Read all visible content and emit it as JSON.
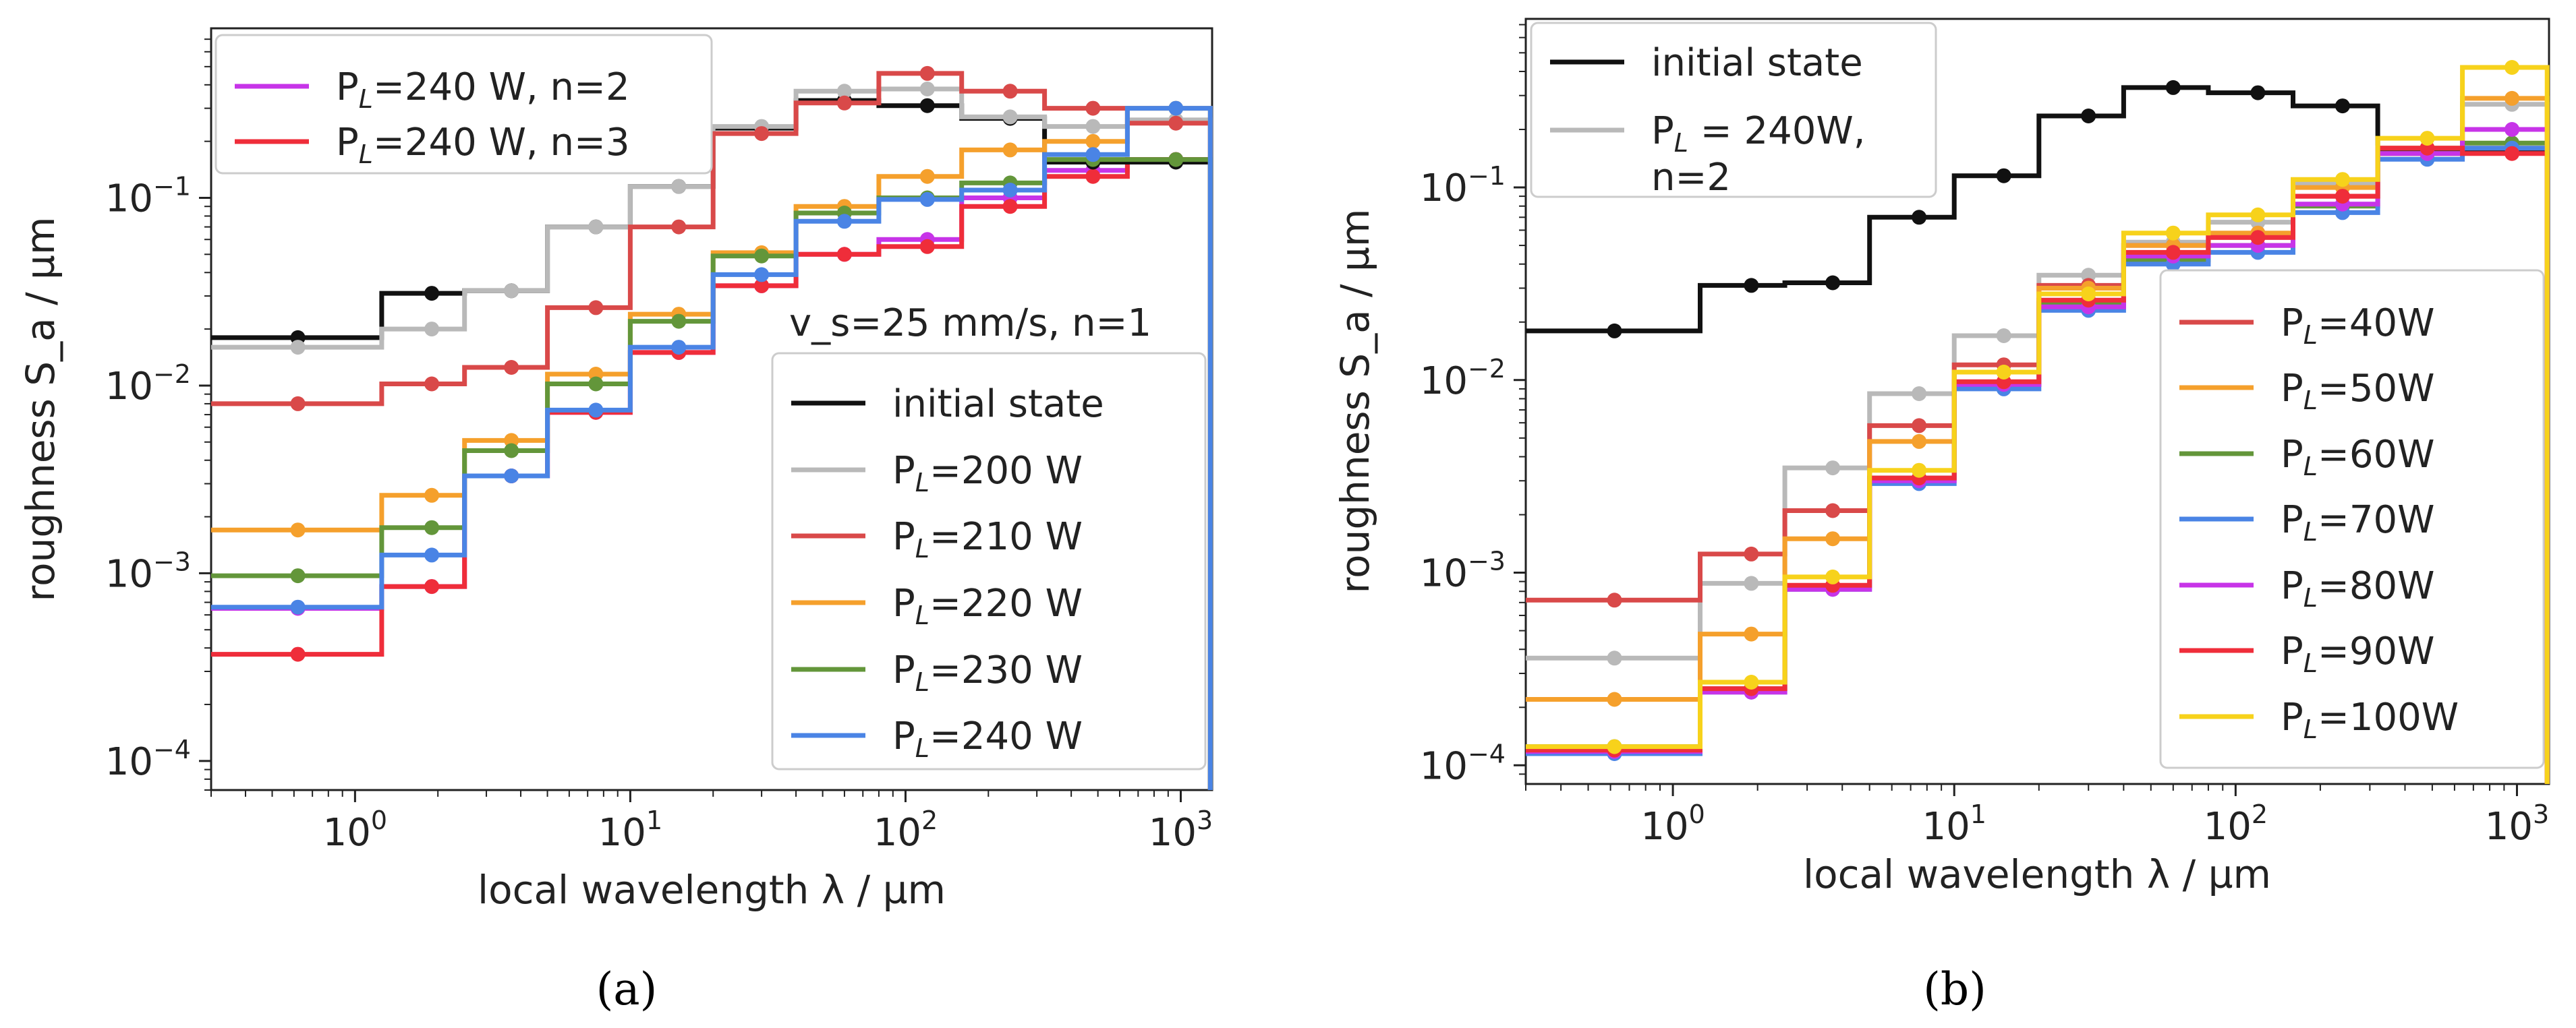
{
  "figure": {
    "captions": [
      "(a)",
      "(b)"
    ]
  },
  "chart_data": [
    {
      "type": "line",
      "panel": "a",
      "step": true,
      "xscale": "log",
      "yscale": "log",
      "xlabel": "local wavelength λ / µm",
      "ylabel": "roughness S_a / µm",
      "xlim": [
        0.3,
        1300
      ],
      "ylim": [
        7e-05,
        0.8
      ],
      "x_ticks": [
        {
          "value": 1,
          "base": "10",
          "exp": "0"
        },
        {
          "value": 10,
          "base": "10",
          "exp": "1"
        },
        {
          "value": 100,
          "base": "10",
          "exp": "2"
        },
        {
          "value": 1000,
          "base": "10",
          "exp": "3"
        }
      ],
      "y_ticks": [
        {
          "value": 0.0001,
          "base": "10",
          "exp": "−4"
        },
        {
          "value": 0.001,
          "base": "10",
          "exp": "−3"
        },
        {
          "value": 0.01,
          "base": "10",
          "exp": "−2"
        },
        {
          "value": 0.1,
          "base": "10",
          "exp": "−1"
        }
      ],
      "bin_edges": [
        0.3,
        1.25,
        2.5,
        5,
        10,
        20,
        40,
        80,
        160,
        320,
        640,
        1280
      ],
      "x": [
        0.62,
        1.9,
        3.7,
        7.5,
        15,
        30,
        60,
        120,
        240,
        480,
        960
      ],
      "annotation": "v_s=25 mm/s, n=1",
      "legends": [
        {
          "position": "upper-left",
          "items": [
            0,
            1
          ]
        },
        {
          "position": "lower-right",
          "items": [
            2,
            3,
            4,
            5,
            6,
            7
          ]
        }
      ],
      "series": [
        {
          "name": "P_L=240 W, n=2",
          "sub": "L",
          "pre": "P",
          "post": "=240 W, n=2",
          "color": "#c734e8",
          "values": [
            0.00065,
            0.00085,
            0.0033,
            0.0072,
            0.015,
            0.034,
            0.05,
            0.06,
            0.1,
            0.14,
            0.16
          ]
        },
        {
          "name": "P_L=240 W, n=3",
          "sub": "L",
          "pre": "P",
          "post": "=240 W, n=3",
          "color": "#ef2d3a",
          "values": [
            0.00037,
            0.00085,
            0.0033,
            0.0072,
            0.015,
            0.034,
            0.05,
            0.055,
            0.09,
            0.13,
            0.16
          ]
        },
        {
          "name": "initial state",
          "sub": "",
          "pre": "initial state",
          "post": "",
          "color": "#111111",
          "values": [
            0.018,
            0.031,
            0.032,
            0.07,
            0.115,
            0.235,
            0.33,
            0.31,
            0.265,
            0.155,
            0.155
          ]
        },
        {
          "name": "P_L=200 W",
          "sub": "L",
          "pre": "P",
          "post": "=200 W",
          "color": "#b9b9b9",
          "values": [
            0.016,
            0.02,
            0.032,
            0.07,
            0.115,
            0.24,
            0.37,
            0.38,
            0.27,
            0.24,
            0.26
          ]
        },
        {
          "name": "P_L=210 W",
          "sub": "L",
          "pre": "P",
          "post": "=210 W",
          "color": "#d94949",
          "values": [
            0.008,
            0.0102,
            0.0125,
            0.026,
            0.07,
            0.22,
            0.32,
            0.46,
            0.37,
            0.3,
            0.25
          ]
        },
        {
          "name": "P_L=220 W",
          "sub": "L",
          "pre": "P",
          "post": "=220 W",
          "color": "#f5a02c",
          "values": [
            0.0017,
            0.0026,
            0.0051,
            0.0115,
            0.024,
            0.051,
            0.09,
            0.13,
            0.18,
            0.2,
            0.3
          ]
        },
        {
          "name": "P_L=230 W",
          "sub": "L",
          "pre": "P",
          "post": "=230 W",
          "color": "#63963a",
          "values": [
            0.00097,
            0.00175,
            0.0045,
            0.0102,
            0.022,
            0.049,
            0.083,
            0.1,
            0.12,
            0.16,
            0.16
          ]
        },
        {
          "name": "P_L=240 W",
          "sub": "L",
          "pre": "P",
          "post": "=240 W",
          "color": "#4a84e5",
          "values": [
            0.00066,
            0.00125,
            0.0033,
            0.0074,
            0.016,
            0.039,
            0.075,
            0.098,
            0.11,
            0.17,
            0.3
          ]
        }
      ]
    },
    {
      "type": "line",
      "panel": "b",
      "step": true,
      "xscale": "log",
      "yscale": "log",
      "xlabel": "local wavelength λ / µm",
      "ylabel": "roughness S_a / µm",
      "xlim": [
        0.3,
        1300
      ],
      "ylim": [
        8e-05,
        0.75
      ],
      "x_ticks": [
        {
          "value": 1,
          "base": "10",
          "exp": "0"
        },
        {
          "value": 10,
          "base": "10",
          "exp": "1"
        },
        {
          "value": 100,
          "base": "10",
          "exp": "2"
        },
        {
          "value": 1000,
          "base": "10",
          "exp": "3"
        }
      ],
      "y_ticks": [
        {
          "value": 0.0001,
          "base": "10",
          "exp": "−4"
        },
        {
          "value": 0.001,
          "base": "10",
          "exp": "−3"
        },
        {
          "value": 0.01,
          "base": "10",
          "exp": "−2"
        },
        {
          "value": 0.1,
          "base": "10",
          "exp": "−1"
        }
      ],
      "bin_edges": [
        0.3,
        1.25,
        2.5,
        5,
        10,
        20,
        40,
        80,
        160,
        320,
        640,
        1280
      ],
      "x": [
        0.62,
        1.9,
        3.7,
        7.5,
        15,
        30,
        60,
        120,
        240,
        480,
        960
      ],
      "annotation": "",
      "legends": [
        {
          "position": "upper-left",
          "items": [
            0,
            1
          ]
        },
        {
          "position": "lower-right",
          "items": [
            2,
            3,
            4,
            5,
            6,
            7,
            8
          ]
        }
      ],
      "series": [
        {
          "name": "initial state",
          "sub": "",
          "pre": "initial state",
          "post": "",
          "color": "#111111",
          "values": [
            0.018,
            0.031,
            0.032,
            0.07,
            0.115,
            0.235,
            0.33,
            0.31,
            0.265,
            0.155,
            0.155
          ]
        },
        {
          "name": "P_L = 240W, n=2",
          "sub": "L",
          "pre": "P",
          "post": " = 240W,",
          "line2": "n=2",
          "color": "#b9b9b9",
          "values": [
            0.00036,
            0.00088,
            0.0035,
            0.0085,
            0.017,
            0.035,
            0.052,
            0.066,
            0.105,
            0.16,
            0.27
          ]
        },
        {
          "name": "P_L=40W",
          "sub": "L",
          "pre": "P",
          "post": "=40W",
          "color": "#d94949",
          "values": [
            0.00072,
            0.00125,
            0.0021,
            0.0058,
            0.012,
            0.031,
            0.05,
            0.055,
            0.09,
            0.15,
            0.16
          ]
        },
        {
          "name": "P_L=50W",
          "sub": "L",
          "pre": "P",
          "post": "=50W",
          "color": "#f5a02c",
          "values": [
            0.00022,
            0.00048,
            0.0015,
            0.0048,
            0.011,
            0.03,
            0.05,
            0.058,
            0.1,
            0.16,
            0.29
          ]
        },
        {
          "name": "P_L=60W",
          "sub": "L",
          "pre": "P",
          "post": "=60W",
          "color": "#63963a",
          "values": [
            0.000125,
            0.00025,
            0.00085,
            0.0031,
            0.0095,
            0.025,
            0.042,
            0.05,
            0.08,
            0.15,
            0.17
          ]
        },
        {
          "name": "P_L=70W",
          "sub": "L",
          "pre": "P",
          "post": "=70W",
          "color": "#4a84e5",
          "values": [
            0.000115,
            0.00024,
            0.00082,
            0.0029,
            0.009,
            0.023,
            0.04,
            0.046,
            0.074,
            0.14,
            0.16
          ]
        },
        {
          "name": "P_L=80W",
          "sub": "L",
          "pre": "P",
          "post": "=80W",
          "color": "#c734e8",
          "values": [
            0.000118,
            0.00024,
            0.00082,
            0.003,
            0.0095,
            0.024,
            0.044,
            0.05,
            0.082,
            0.15,
            0.2
          ]
        },
        {
          "name": "P_L=90W",
          "sub": "L",
          "pre": "P",
          "post": "=90W",
          "color": "#ef2d3a",
          "values": [
            0.00012,
            0.00025,
            0.00086,
            0.0031,
            0.0098,
            0.026,
            0.046,
            0.055,
            0.09,
            0.16,
            0.15
          ]
        },
        {
          "name": "P_L=100W",
          "sub": "L",
          "pre": "P",
          "post": "=100W",
          "color": "#f7d21b",
          "values": [
            0.000125,
            0.00027,
            0.00095,
            0.0034,
            0.011,
            0.028,
            0.058,
            0.072,
            0.11,
            0.18,
            0.42
          ]
        }
      ]
    }
  ]
}
